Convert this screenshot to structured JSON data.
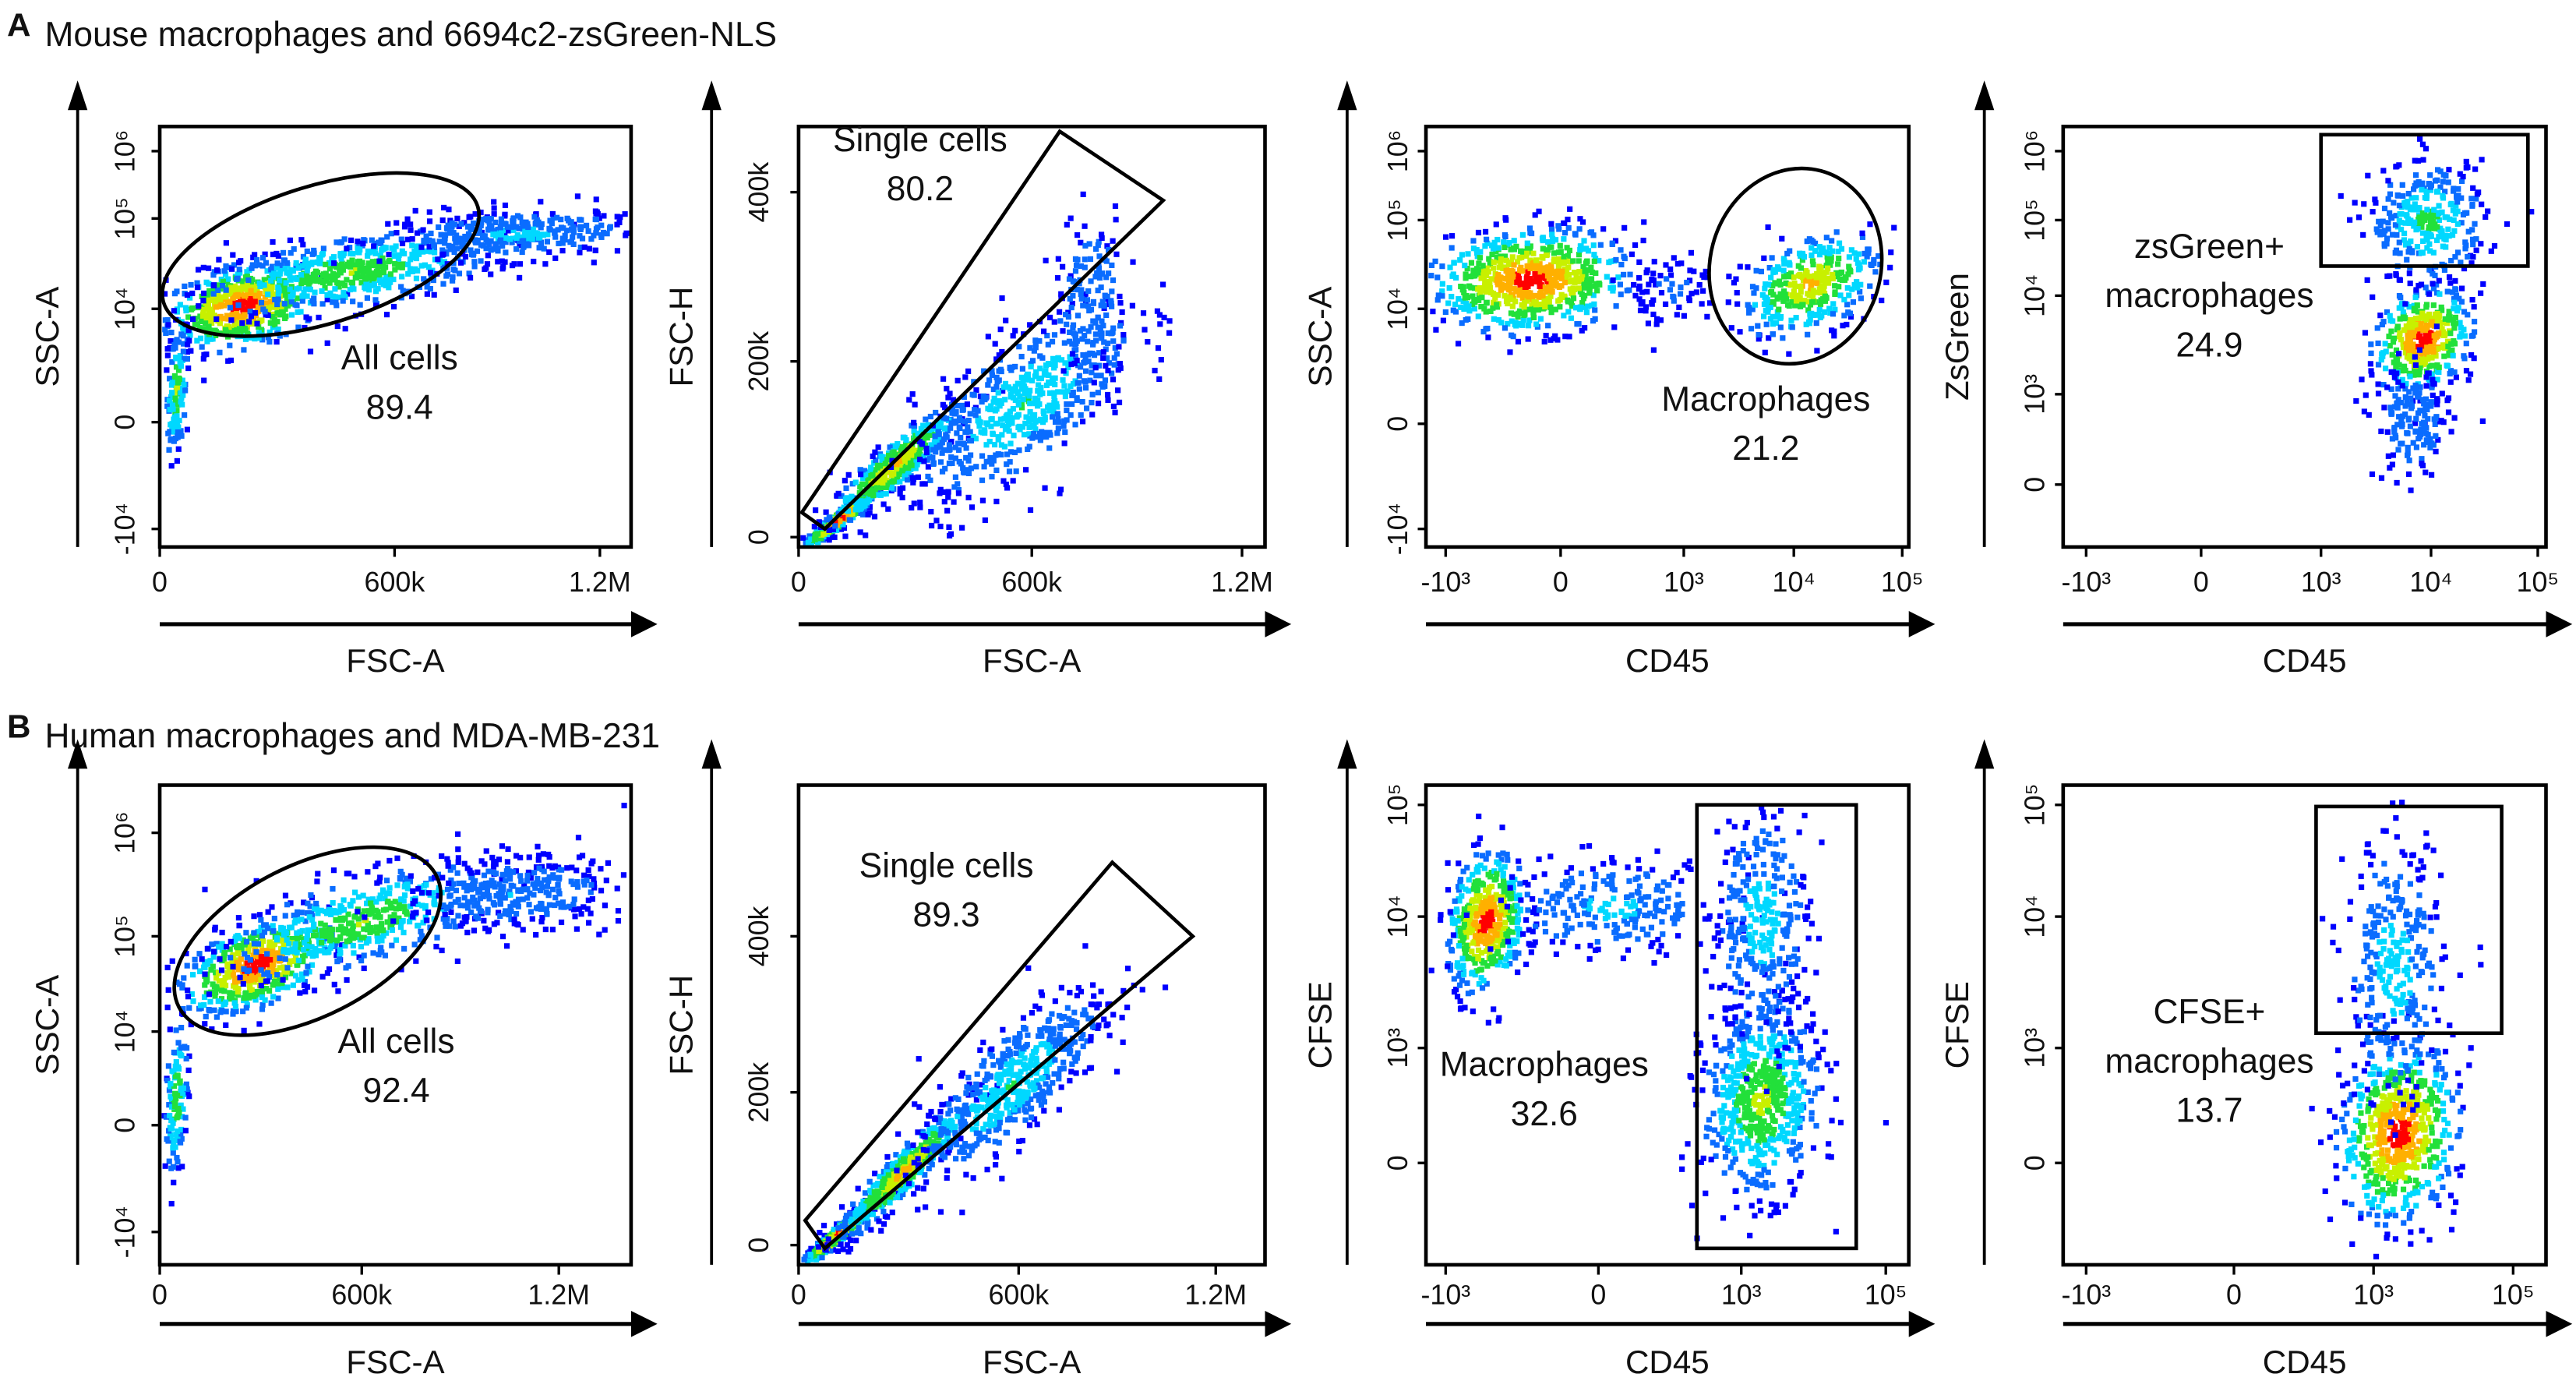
{
  "figure_panels": [
    {
      "letter": "A",
      "title": "Mouse macrophages and 6694c2-zsGreen-NLS"
    },
    {
      "letter": "B",
      "title": "Human macrophages and MDA-MB-231"
    }
  ],
  "colors": {
    "density_palette": [
      "#0000ff",
      "#0a6cff",
      "#00d8ff",
      "#22e03a",
      "#c8f000",
      "#ffb000",
      "#ff0000"
    ],
    "gate": "#000000",
    "axis": "#000000"
  },
  "chart_data": [
    {
      "panel": "A",
      "type": "scatter",
      "subtype": "flow-cytometry density plot",
      "xlabel": "FSC-A",
      "ylabel": "SSC-A",
      "xscale": "linear",
      "yscale": "biexponential",
      "xticks": [
        "0",
        "600k",
        "1.2M"
      ],
      "yticks": [
        "10⁶",
        "10⁵",
        "10⁴",
        "0",
        "-10⁴"
      ],
      "gate": {
        "shape": "ellipse",
        "label_lines": [
          "All cells"
        ],
        "percent": "89.4"
      }
    },
    {
      "panel": "A",
      "type": "scatter",
      "subtype": "flow-cytometry density plot",
      "xlabel": "FSC-A",
      "ylabel": "FSC-H",
      "xscale": "linear",
      "yscale": "linear",
      "xticks": [
        "0",
        "600k",
        "1.2M"
      ],
      "yticks": [
        "400k",
        "200k",
        "0"
      ],
      "gate": {
        "shape": "polygon",
        "label_lines": [
          "Single cells"
        ],
        "percent": "80.2"
      }
    },
    {
      "panel": "A",
      "type": "scatter",
      "subtype": "flow-cytometry density plot",
      "xlabel": "CD45",
      "ylabel": "SSC-A",
      "xscale": "biexponential",
      "yscale": "biexponential",
      "xticks": [
        "-10³",
        "0",
        "10³",
        "10⁴",
        "10⁵"
      ],
      "yticks": [
        "10⁶",
        "10⁵",
        "10⁴",
        "0",
        "-10⁴"
      ],
      "gate": {
        "shape": "ellipse",
        "label_lines": [
          "Macrophages"
        ],
        "percent": "21.2"
      }
    },
    {
      "panel": "A",
      "type": "scatter",
      "subtype": "flow-cytometry density plot",
      "xlabel": "CD45",
      "ylabel": "ZsGreen",
      "xscale": "biexponential",
      "yscale": "biexponential",
      "xticks": [
        "-10³",
        "0",
        "10³",
        "10⁴",
        "10⁵"
      ],
      "yticks": [
        "10⁶",
        "10⁵",
        "10⁴",
        "10³",
        "0"
      ],
      "gate": {
        "shape": "rectangle",
        "label_lines": [
          "zsGreen+",
          "macrophages"
        ],
        "percent": "24.9"
      }
    },
    {
      "panel": "B",
      "type": "scatter",
      "subtype": "flow-cytometry density plot",
      "xlabel": "FSC-A",
      "ylabel": "SSC-A",
      "xscale": "linear",
      "yscale": "biexponential",
      "xticks": [
        "0",
        "600k",
        "1.2M"
      ],
      "yticks": [
        "10⁶",
        "10⁵",
        "10⁴",
        "0",
        "-10⁴"
      ],
      "gate": {
        "shape": "ellipse",
        "label_lines": [
          "All cells"
        ],
        "percent": "92.4"
      }
    },
    {
      "panel": "B",
      "type": "scatter",
      "subtype": "flow-cytometry density plot",
      "xlabel": "FSC-A",
      "ylabel": "FSC-H",
      "xscale": "linear",
      "yscale": "linear",
      "xticks": [
        "0",
        "600k",
        "1.2M"
      ],
      "yticks": [
        "400k",
        "200k",
        "0"
      ],
      "gate": {
        "shape": "polygon",
        "label_lines": [
          "Single cells"
        ],
        "percent": "89.3"
      }
    },
    {
      "panel": "B",
      "type": "scatter",
      "subtype": "flow-cytometry density plot",
      "xlabel": "CD45",
      "ylabel": "CFSE",
      "xscale": "biexponential",
      "yscale": "biexponential",
      "xticks": [
        "-10³",
        "0",
        "10³",
        "10⁵"
      ],
      "yticks": [
        "10⁵",
        "10⁴",
        "10³",
        "0"
      ],
      "gate": {
        "shape": "rectangle",
        "label_lines": [
          "Macrophages"
        ],
        "percent": "32.6"
      }
    },
    {
      "panel": "B",
      "type": "scatter",
      "subtype": "flow-cytometry density plot",
      "xlabel": "CD45",
      "ylabel": "CFSE",
      "xscale": "biexponential",
      "yscale": "biexponential",
      "xticks": [
        "-10³",
        "0",
        "10³",
        "10⁵"
      ],
      "yticks": [
        "10⁵",
        "10⁴",
        "10³",
        "0"
      ],
      "gate": {
        "shape": "rectangle",
        "label_lines": [
          "CFSE+",
          "macrophages"
        ],
        "percent": "13.7"
      }
    }
  ]
}
